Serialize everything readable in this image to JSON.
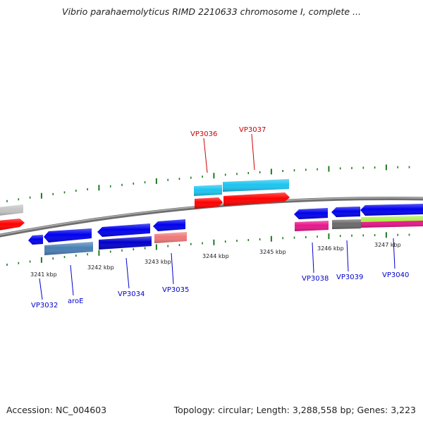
{
  "title": "Vibrio parahaemolyticus RIMD 2210633 chromosome I, complete ...",
  "footer": {
    "accession": "Accession: NC_004603",
    "summary": "Topology: circular; Length: 3,288,558 bp; Genes: 3,223"
  },
  "scale": {
    "tick_labels": [
      "3241 kbp",
      "3242 kbp",
      "3243 kbp",
      "3244 kbp",
      "3245 kbp",
      "3246 kbp",
      "3247 kbp"
    ]
  },
  "colors": {
    "backbone": "#808080",
    "tick": "#1e7a1e",
    "label_plus": "#cc0000",
    "label_minus": "#0000cc"
  },
  "gene_labels": [
    {
      "text": "VP3036",
      "strand": "plus"
    },
    {
      "text": "VP3037",
      "strand": "plus"
    },
    {
      "text": "VP3032",
      "strand": "minus"
    },
    {
      "text": "aroE",
      "strand": "minus"
    },
    {
      "text": "VP3034",
      "strand": "minus"
    },
    {
      "text": "VP3035",
      "strand": "minus"
    },
    {
      "text": "VP3038",
      "strand": "minus"
    },
    {
      "text": "VP3039",
      "strand": "minus"
    },
    {
      "text": "VP3040",
      "strand": "minus"
    }
  ]
}
